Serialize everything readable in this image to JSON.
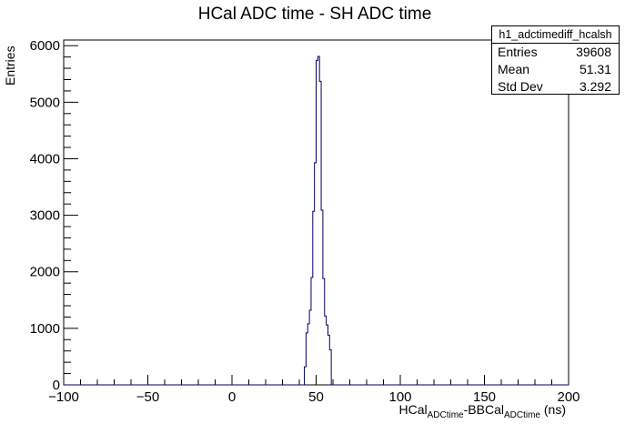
{
  "chart_data": {
    "type": "bar",
    "histogram": true,
    "title": "HCal ADC time - SH ADC time",
    "xlabel": {
      "pre": "HCal",
      "sub1": "ADCtime",
      "mid": "-BBCal",
      "sub2": "ADCtime",
      "post": " (ns)"
    },
    "ylabel": "Entries",
    "xlim": [
      -100,
      200
    ],
    "ylim": [
      0,
      6100
    ],
    "xticks": [
      -100,
      -50,
      0,
      50,
      100,
      150,
      200
    ],
    "xtick_labels": [
      "−100",
      "−50",
      "0",
      "50",
      "100",
      "150",
      "200"
    ],
    "yticks": [
      0,
      1000,
      2000,
      3000,
      4000,
      5000,
      6000
    ],
    "ytick_labels": [
      "0",
      "1000",
      "2000",
      "3000",
      "4000",
      "5000",
      "6000"
    ],
    "grid": false,
    "line_color": "#000066",
    "bins": [
      {
        "lo": 43,
        "hi": 44,
        "value": 320
      },
      {
        "lo": 44,
        "hi": 45,
        "value": 920
      },
      {
        "lo": 45,
        "hi": 46,
        "value": 1080
      },
      {
        "lo": 46,
        "hi": 47,
        "value": 1320
      },
      {
        "lo": 47,
        "hi": 48,
        "value": 1900
      },
      {
        "lo": 48,
        "hi": 49,
        "value": 3070
      },
      {
        "lo": 49,
        "hi": 50,
        "value": 3930
      },
      {
        "lo": 50,
        "hi": 51,
        "value": 5740
      },
      {
        "lo": 51,
        "hi": 52,
        "value": 5810
      },
      {
        "lo": 52,
        "hi": 53,
        "value": 5370
      },
      {
        "lo": 53,
        "hi": 54,
        "value": 3090
      },
      {
        "lo": 54,
        "hi": 55,
        "value": 1880
      },
      {
        "lo": 55,
        "hi": 56,
        "value": 1220
      },
      {
        "lo": 56,
        "hi": 57,
        "value": 1060
      },
      {
        "lo": 57,
        "hi": 58,
        "value": 880
      },
      {
        "lo": 58,
        "hi": 59,
        "value": 620
      },
      {
        "lo": 59,
        "hi": 60,
        "value": 0
      }
    ],
    "stats": {
      "name": "h1_adctimediff_hcalsh",
      "entries_label": "Entries",
      "entries": "39608",
      "mean_label": "Mean",
      "mean": "51.31",
      "stddev_label": "Std Dev",
      "stddev": "3.292"
    }
  }
}
